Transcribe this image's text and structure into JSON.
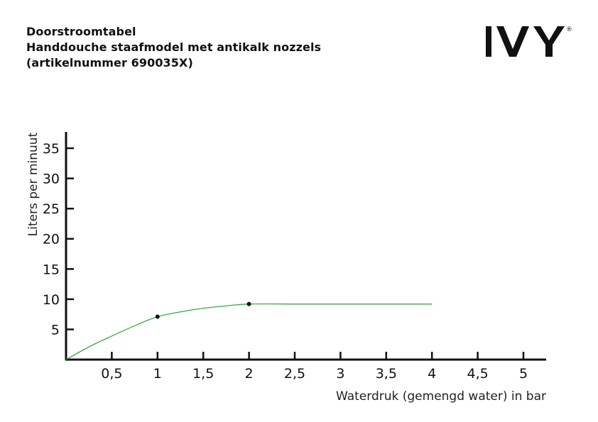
{
  "header": {
    "line1": "Doorstroomtabel",
    "line2": "Handdouche staafmodel met antikalk nozzels",
    "line3": "(artikelnummer 690035X)"
  },
  "logo": {
    "text": "IVY",
    "mark": "®"
  },
  "chart_data": {
    "type": "line",
    "xlabel": "Waterdruk (gemengd water) in bar",
    "ylabel": "Liters per minuut",
    "xlim": [
      0,
      5.25
    ],
    "ylim": [
      0,
      37.5
    ],
    "x_ticks": [
      0.5,
      1,
      1.5,
      2,
      2.5,
      3,
      3.5,
      4,
      4.5,
      5
    ],
    "x_tick_labels": [
      "0,5",
      "1",
      "1,5",
      "2",
      "2,5",
      "3",
      "3,5",
      "4",
      "4,5",
      "5"
    ],
    "y_ticks": [
      5,
      10,
      15,
      20,
      25,
      30,
      35
    ],
    "y_tick_labels": [
      "5",
      "10",
      "15",
      "20",
      "25",
      "30",
      "35"
    ],
    "grid": false,
    "legend": "none",
    "series": [
      {
        "color": "#3cab3c",
        "x": [
          0,
          0.25,
          0.5,
          0.75,
          1,
          1.25,
          1.5,
          1.75,
          2,
          2.5,
          3,
          3.5,
          4
        ],
        "y": [
          0,
          2.1,
          3.9,
          5.6,
          7.1,
          7.9,
          8.5,
          8.9,
          9.2,
          9.2,
          9.2,
          9.2,
          9.2
        ],
        "markers": [
          {
            "x": 1,
            "y": 7.1
          },
          {
            "x": 2,
            "y": 9.2
          }
        ]
      }
    ]
  }
}
